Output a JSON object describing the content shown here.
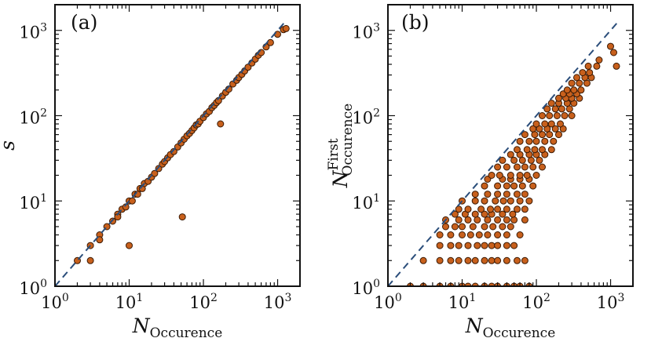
{
  "chart_data": [
    {
      "panel": "(a)",
      "type": "scatter",
      "xscale": "log",
      "yscale": "log",
      "xlim": [
        1,
        2000
      ],
      "ylim": [
        1,
        2000
      ],
      "xlabel": {
        "base": "N",
        "sub": "Occurence",
        "sup": ""
      },
      "ylabel": {
        "base": "s",
        "sub": "",
        "sup": ""
      },
      "x_ticks": [
        {
          "base": "10",
          "exp": "0",
          "value": 1
        },
        {
          "base": "10",
          "exp": "1",
          "value": 10
        },
        {
          "base": "10",
          "exp": "2",
          "value": 100
        },
        {
          "base": "10",
          "exp": "3",
          "value": 1000
        }
      ],
      "y_ticks": [
        {
          "base": "10",
          "exp": "0",
          "value": 1
        },
        {
          "base": "10",
          "exp": "1",
          "value": 10
        },
        {
          "base": "10",
          "exp": "2",
          "value": 100
        },
        {
          "base": "10",
          "exp": "3",
          "value": 1000
        }
      ],
      "reference_line": {
        "style": "dashed",
        "color": "#2a4d7a",
        "x": [
          1,
          1300
        ],
        "y": [
          1,
          1300
        ]
      },
      "marker_color": "#c8601c",
      "marker_edge": "#3a1a05",
      "points": [
        [
          2,
          2
        ],
        [
          3,
          2
        ],
        [
          3,
          3
        ],
        [
          4,
          4
        ],
        [
          4,
          3.5
        ],
        [
          5,
          5
        ],
        [
          6,
          5.8
        ],
        [
          7,
          7
        ],
        [
          7,
          6.5
        ],
        [
          8,
          8
        ],
        [
          9,
          8.5
        ],
        [
          10,
          3
        ],
        [
          10,
          10
        ],
        [
          11,
          10
        ],
        [
          12,
          12
        ],
        [
          13,
          12
        ],
        [
          14,
          14
        ],
        [
          15,
          14
        ],
        [
          16,
          16
        ],
        [
          18,
          17
        ],
        [
          20,
          19
        ],
        [
          22,
          21
        ],
        [
          25,
          24
        ],
        [
          28,
          27
        ],
        [
          30,
          29
        ],
        [
          33,
          32
        ],
        [
          36,
          35
        ],
        [
          40,
          38
        ],
        [
          45,
          43
        ],
        [
          50,
          48
        ],
        [
          52,
          6.5
        ],
        [
          55,
          53
        ],
        [
          60,
          58
        ],
        [
          65,
          62
        ],
        [
          70,
          67
        ],
        [
          75,
          72
        ],
        [
          80,
          78
        ],
        [
          85,
          80
        ],
        [
          90,
          86
        ],
        [
          100,
          95
        ],
        [
          110,
          105
        ],
        [
          120,
          112
        ],
        [
          130,
          124
        ],
        [
          140,
          132
        ],
        [
          150,
          142
        ],
        [
          160,
          150
        ],
        [
          170,
          80
        ],
        [
          180,
          170
        ],
        [
          200,
          188
        ],
        [
          220,
          205
        ],
        [
          250,
          235
        ],
        [
          280,
          260
        ],
        [
          300,
          280
        ],
        [
          330,
          305
        ],
        [
          360,
          335
        ],
        [
          400,
          370
        ],
        [
          450,
          415
        ],
        [
          500,
          460
        ],
        [
          550,
          510
        ],
        [
          600,
          550
        ],
        [
          700,
          640
        ],
        [
          800,
          720
        ],
        [
          1000,
          900
        ],
        [
          1200,
          1020
        ],
        [
          1300,
          1050
        ]
      ]
    },
    {
      "panel": "(b)",
      "type": "scatter",
      "xscale": "log",
      "yscale": "log",
      "xlim": [
        1,
        2000
      ],
      "ylim": [
        1,
        2000
      ],
      "xlabel": {
        "base": "N",
        "sub": "Occurence",
        "sup": ""
      },
      "ylabel": {
        "base": "N",
        "sub": "Occurence",
        "sup": "First"
      },
      "x_ticks": [
        {
          "base": "10",
          "exp": "0",
          "value": 1
        },
        {
          "base": "10",
          "exp": "1",
          "value": 10
        },
        {
          "base": "10",
          "exp": "2",
          "value": 100
        },
        {
          "base": "10",
          "exp": "3",
          "value": 1000
        }
      ],
      "y_ticks": [
        {
          "base": "10",
          "exp": "0",
          "value": 1
        },
        {
          "base": "10",
          "exp": "1",
          "value": 10
        },
        {
          "base": "10",
          "exp": "2",
          "value": 100
        },
        {
          "base": "10",
          "exp": "3",
          "value": 1000
        }
      ],
      "reference_line": {
        "style": "dashed",
        "color": "#2a4d7a",
        "x": [
          1,
          1300
        ],
        "y": [
          1,
          1300
        ]
      },
      "marker_color": "#c8601c",
      "marker_edge": "#3a1a05",
      "points": [
        [
          2,
          1
        ],
        [
          3,
          1
        ],
        [
          5,
          1
        ],
        [
          7,
          1
        ],
        [
          10,
          1
        ],
        [
          12,
          1
        ],
        [
          15,
          1
        ],
        [
          20,
          1
        ],
        [
          25,
          1
        ],
        [
          30,
          1
        ],
        [
          40,
          1
        ],
        [
          50,
          1
        ],
        [
          60,
          1
        ],
        [
          80,
          1
        ],
        [
          3,
          2
        ],
        [
          5,
          2
        ],
        [
          7,
          2
        ],
        [
          9,
          2
        ],
        [
          12,
          2
        ],
        [
          15,
          2
        ],
        [
          20,
          2
        ],
        [
          25,
          2
        ],
        [
          30,
          2
        ],
        [
          40,
          2
        ],
        [
          55,
          2
        ],
        [
          70,
          2
        ],
        [
          5,
          3
        ],
        [
          7,
          3
        ],
        [
          9,
          3
        ],
        [
          12,
          3
        ],
        [
          16,
          3
        ],
        [
          20,
          3
        ],
        [
          25,
          3
        ],
        [
          30,
          3
        ],
        [
          40,
          3
        ],
        [
          50,
          3
        ],
        [
          5,
          4
        ],
        [
          7,
          4
        ],
        [
          10,
          4
        ],
        [
          13,
          4
        ],
        [
          17,
          4
        ],
        [
          22,
          4
        ],
        [
          30,
          4
        ],
        [
          40,
          4
        ],
        [
          60,
          4
        ],
        [
          6,
          5
        ],
        [
          8,
          5
        ],
        [
          10,
          5
        ],
        [
          14,
          5
        ],
        [
          20,
          5
        ],
        [
          26,
          5
        ],
        [
          35,
          5
        ],
        [
          45,
          5
        ],
        [
          6,
          6
        ],
        [
          9,
          6
        ],
        [
          12,
          6
        ],
        [
          16,
          6
        ],
        [
          22,
          6
        ],
        [
          30,
          6
        ],
        [
          40,
          6
        ],
        [
          50,
          6
        ],
        [
          70,
          6
        ],
        [
          8,
          7
        ],
        [
          11,
          7
        ],
        [
          15,
          7
        ],
        [
          20,
          7
        ],
        [
          25,
          7
        ],
        [
          35,
          7
        ],
        [
          48,
          7
        ],
        [
          9,
          8
        ],
        [
          12,
          8
        ],
        [
          18,
          8
        ],
        [
          24,
          8
        ],
        [
          30,
          8
        ],
        [
          40,
          8
        ],
        [
          55,
          8
        ],
        [
          70,
          8
        ],
        [
          10,
          10
        ],
        [
          15,
          10
        ],
        [
          20,
          10
        ],
        [
          28,
          10
        ],
        [
          36,
          10
        ],
        [
          45,
          10
        ],
        [
          60,
          10
        ],
        [
          80,
          10
        ],
        [
          15,
          12
        ],
        [
          22,
          12
        ],
        [
          30,
          12
        ],
        [
          40,
          12
        ],
        [
          55,
          12
        ],
        [
          70,
          12
        ],
        [
          20,
          15
        ],
        [
          30,
          15
        ],
        [
          40,
          15
        ],
        [
          50,
          15
        ],
        [
          65,
          15
        ],
        [
          90,
          15
        ],
        [
          22,
          18
        ],
        [
          35,
          18
        ],
        [
          45,
          18
        ],
        [
          60,
          18
        ],
        [
          80,
          18
        ],
        [
          25,
          20
        ],
        [
          32,
          20
        ],
        [
          45,
          20
        ],
        [
          60,
          20
        ],
        [
          75,
          20
        ],
        [
          100,
          20
        ],
        [
          30,
          25
        ],
        [
          40,
          25
        ],
        [
          55,
          25
        ],
        [
          70,
          25
        ],
        [
          90,
          25
        ],
        [
          120,
          25
        ],
        [
          35,
          30
        ],
        [
          50,
          30
        ],
        [
          65,
          30
        ],
        [
          85,
          30
        ],
        [
          110,
          30
        ],
        [
          45,
          35
        ],
        [
          60,
          35
        ],
        [
          80,
          35
        ],
        [
          100,
          35
        ],
        [
          130,
          35
        ],
        [
          55,
          40
        ],
        [
          75,
          40
        ],
        [
          95,
          40
        ],
        [
          120,
          40
        ],
        [
          160,
          40
        ],
        [
          60,
          50
        ],
        [
          80,
          50
        ],
        [
          100,
          50
        ],
        [
          130,
          50
        ],
        [
          170,
          50
        ],
        [
          70,
          60
        ],
        [
          95,
          60
        ],
        [
          120,
          60
        ],
        [
          150,
          60
        ],
        [
          200,
          60
        ],
        [
          90,
          70
        ],
        [
          110,
          70
        ],
        [
          140,
          70
        ],
        [
          180,
          70
        ],
        [
          230,
          70
        ],
        [
          100,
          80
        ],
        [
          130,
          80
        ],
        [
          160,
          80
        ],
        [
          210,
          80
        ],
        [
          120,
          100
        ],
        [
          150,
          100
        ],
        [
          190,
          100
        ],
        [
          240,
          100
        ],
        [
          300,
          100
        ],
        [
          140,
          120
        ],
        [
          180,
          120
        ],
        [
          220,
          120
        ],
        [
          280,
          120
        ],
        [
          160,
          140
        ],
        [
          200,
          140
        ],
        [
          260,
          140
        ],
        [
          320,
          140
        ],
        [
          200,
          160
        ],
        [
          250,
          160
        ],
        [
          300,
          160
        ],
        [
          380,
          160
        ],
        [
          230,
          180
        ],
        [
          280,
          180
        ],
        [
          350,
          180
        ],
        [
          260,
          200
        ],
        [
          320,
          200
        ],
        [
          400,
          200
        ],
        [
          300,
          240
        ],
        [
          380,
          240
        ],
        [
          480,
          240
        ],
        [
          350,
          280
        ],
        [
          450,
          280
        ],
        [
          550,
          280
        ],
        [
          420,
          320
        ],
        [
          520,
          320
        ],
        [
          500,
          380
        ],
        [
          650,
          380
        ],
        [
          1200,
          380
        ],
        [
          700,
          450
        ],
        [
          1100,
          550
        ],
        [
          1000,
          650
        ]
      ]
    }
  ]
}
